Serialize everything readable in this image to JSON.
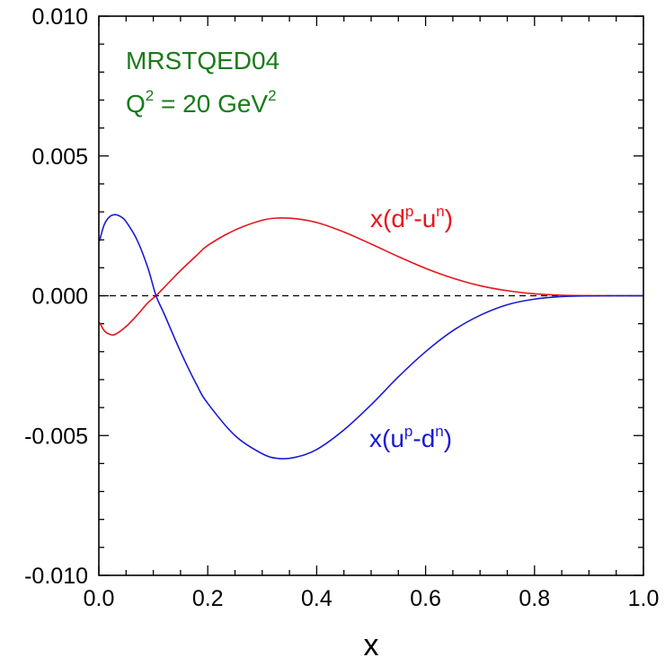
{
  "chart_data": {
    "type": "line",
    "xlabel": "x",
    "ylabel": "",
    "xlim": [
      0.0,
      1.0
    ],
    "ylim": [
      -0.01,
      0.01
    ],
    "x_ticks": [
      "0.0",
      "0.2",
      "0.4",
      "0.6",
      "0.8",
      "1.0"
    ],
    "y_ticks": [
      "0.010",
      "0.005",
      "0.000",
      "-0.005",
      "-0.010"
    ],
    "annotations": {
      "model": "MRSTQED04",
      "scale_prefix": "Q",
      "scale_exp": "2",
      "scale_mid": " = 20 GeV",
      "scale_exp2": "2"
    },
    "series": [
      {
        "color": "#e8141c",
        "label_parts": [
          "x(d",
          "p",
          "-u",
          "n",
          ")"
        ],
        "points": [
          [
            0.001,
            -0.00095
          ],
          [
            0.01,
            -0.00125
          ],
          [
            0.02,
            -0.00138
          ],
          [
            0.03,
            -0.00138
          ],
          [
            0.05,
            -0.0011
          ],
          [
            0.07,
            -0.0007
          ],
          [
            0.09,
            -0.00025
          ],
          [
            0.105,
            0.0
          ],
          [
            0.12,
            0.0003
          ],
          [
            0.15,
            0.0009
          ],
          [
            0.18,
            0.00145
          ],
          [
            0.2,
            0.0018
          ],
          [
            0.25,
            0.00235
          ],
          [
            0.3,
            0.0027
          ],
          [
            0.33,
            0.00278
          ],
          [
            0.36,
            0.00276
          ],
          [
            0.4,
            0.00262
          ],
          [
            0.45,
            0.00228
          ],
          [
            0.5,
            0.00185
          ],
          [
            0.55,
            0.0014
          ],
          [
            0.6,
            0.00098
          ],
          [
            0.65,
            0.00063
          ],
          [
            0.7,
            0.00036
          ],
          [
            0.75,
            0.00018
          ],
          [
            0.8,
            7e-05
          ],
          [
            0.85,
            2e-05
          ],
          [
            0.9,
            3e-06
          ],
          [
            0.95,
            0.0
          ],
          [
            1.0,
            0.0
          ]
        ]
      },
      {
        "color": "#1a1ad6",
        "label_parts": [
          "x(u",
          "p",
          "-d",
          "n",
          ")"
        ],
        "points": [
          [
            0.001,
            0.00195
          ],
          [
            0.01,
            0.00255
          ],
          [
            0.02,
            0.00283
          ],
          [
            0.03,
            0.0029
          ],
          [
            0.04,
            0.00283
          ],
          [
            0.05,
            0.00265
          ],
          [
            0.07,
            0.002
          ],
          [
            0.09,
            0.001
          ],
          [
            0.105,
            0.0
          ],
          [
            0.12,
            -0.00065
          ],
          [
            0.15,
            -0.002
          ],
          [
            0.18,
            -0.0032
          ],
          [
            0.2,
            -0.00385
          ],
          [
            0.25,
            -0.005
          ],
          [
            0.3,
            -0.00565
          ],
          [
            0.33,
            -0.00582
          ],
          [
            0.36,
            -0.00578
          ],
          [
            0.4,
            -0.0055
          ],
          [
            0.45,
            -0.0048
          ],
          [
            0.5,
            -0.0039
          ],
          [
            0.55,
            -0.0029
          ],
          [
            0.6,
            -0.002
          ],
          [
            0.65,
            -0.00125
          ],
          [
            0.7,
            -0.0007
          ],
          [
            0.75,
            -0.00032
          ],
          [
            0.8,
            -0.00012
          ],
          [
            0.85,
            -3e-05
          ],
          [
            0.9,
            -5e-06
          ],
          [
            0.95,
            0.0
          ],
          [
            1.0,
            0.0
          ]
        ]
      }
    ],
    "zero_line": "dashed",
    "grid": false
  },
  "colors": {
    "annotation": "#1a7a1a",
    "axes": "#000000"
  }
}
